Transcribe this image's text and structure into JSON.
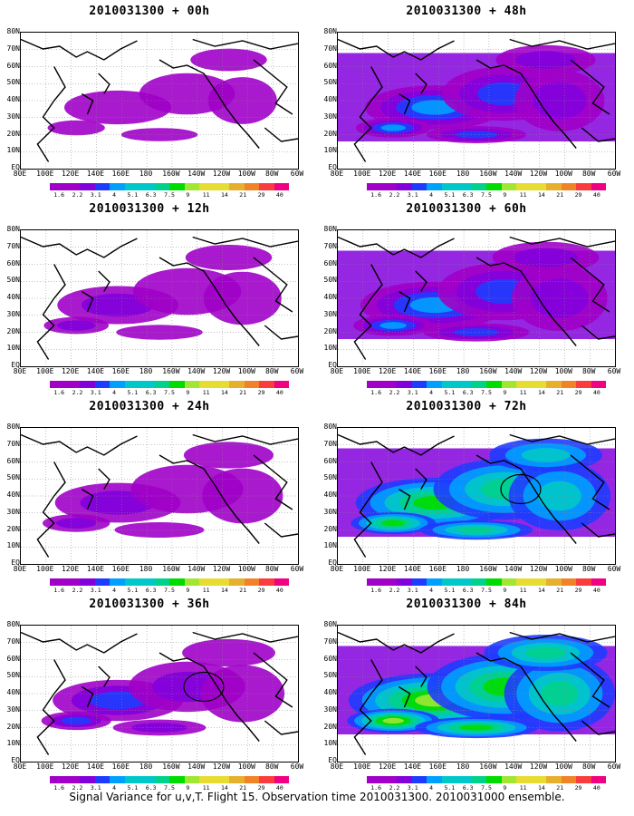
{
  "panels": [
    {
      "title": "2010031300 + 00h",
      "lead": "00h",
      "intensity": 0.15,
      "ellipse": false
    },
    {
      "title": "2010031300 + 48h",
      "lead": "48h",
      "intensity": 0.5,
      "ellipse": false
    },
    {
      "title": "2010031300 + 12h",
      "lead": "12h",
      "intensity": 0.3,
      "ellipse": false
    },
    {
      "title": "2010031300 + 60h",
      "lead": "60h",
      "intensity": 0.6,
      "ellipse": false
    },
    {
      "title": "2010031300 + 24h",
      "lead": "24h",
      "intensity": 0.35,
      "ellipse": false
    },
    {
      "title": "2010031300 + 72h",
      "lead": "72h",
      "intensity": 0.7,
      "ellipse": true
    },
    {
      "title": "2010031300 + 36h",
      "lead": "36h",
      "intensity": 0.4,
      "ellipse": true
    },
    {
      "title": "2010031300 + 84h",
      "lead": "84h",
      "intensity": 0.85,
      "ellipse": false
    }
  ],
  "latitude_labels": [
    "80N",
    "70N",
    "60N",
    "50N",
    "40N",
    "30N",
    "20N",
    "10N",
    "EQ"
  ],
  "longitude_labels": [
    "80E",
    "100E",
    "120E",
    "140E",
    "160E",
    "180",
    "160W",
    "140W",
    "120W",
    "100W",
    "80W",
    "60W"
  ],
  "colorbar": {
    "labels": [
      "1.6",
      "2.2",
      "3.1",
      "4",
      "5.1",
      "6.3",
      "7.5",
      "9",
      "11",
      "14",
      "21",
      "29",
      "40"
    ],
    "colors": [
      "#a000c8",
      "#8200dc",
      "#1e3cff",
      "#00a0ff",
      "#00c8c8",
      "#00d28c",
      "#00dc00",
      "#a0e632",
      "#e6dc32",
      "#e6af2d",
      "#f08228",
      "#fa3c3c",
      "#f00082"
    ]
  },
  "caption": "Signal Variance for u,v,T. Flight 15. Observation time 2010031300. 2010031000 ensemble."
}
